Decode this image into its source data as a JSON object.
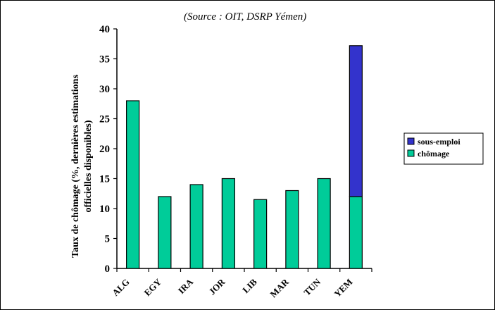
{
  "chart_data": {
    "type": "bar",
    "stacked": true,
    "source_note": "(Source : OIT, DSRP Yémen)",
    "ylabel_lines": [
      "Taux de chômage (%, dernières estimations",
      "officielles disponibles)"
    ],
    "categories": [
      "ALG",
      "EGY",
      "IRA",
      "JOR",
      "LIB",
      "MAR",
      "TUN",
      "YEM"
    ],
    "series": [
      {
        "name": "chômage",
        "color": "#00cc99",
        "values": [
          28,
          12,
          14,
          15,
          11.5,
          13,
          15,
          12
        ]
      },
      {
        "name": "sous-emploi",
        "color": "#3333cc",
        "values": [
          0,
          0,
          0,
          0,
          0,
          0,
          0,
          25.2
        ]
      }
    ],
    "ylim": [
      0,
      40
    ],
    "yticks": [
      0,
      5,
      10,
      15,
      20,
      25,
      30,
      35,
      40
    ],
    "legend_position": "right",
    "legend_order": [
      "sous-emploi",
      "chômage"
    ],
    "grid": false
  }
}
